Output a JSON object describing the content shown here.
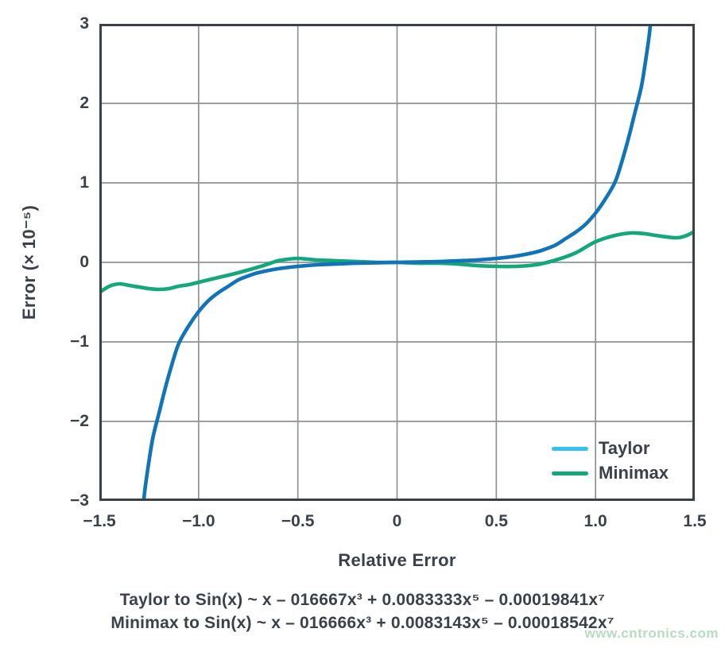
{
  "watermark": {
    "text": "www.cntronics.com",
    "color": "#b6dcc1"
  },
  "chart_data": {
    "type": "line",
    "title": "",
    "xlabel": "Relative Error",
    "ylabel": "Error (× 10⁻⁵)",
    "xlim": [
      -1.5,
      1.5
    ],
    "ylim": [
      -3,
      3
    ],
    "grid": true,
    "axis_color": "#3a414b",
    "grid_color": "#8f9296",
    "background": "#ffffff",
    "x_ticks": [
      {
        "value": -1.5,
        "label": "−1.5"
      },
      {
        "value": -1.0,
        "label": "−1.0"
      },
      {
        "value": -0.5,
        "label": "−0.5"
      },
      {
        "value": 0,
        "label": "0"
      },
      {
        "value": 0.5,
        "label": "0.5"
      },
      {
        "value": 1.0,
        "label": "1.0"
      },
      {
        "value": 1.5,
        "label": "1.5"
      }
    ],
    "y_ticks": [
      {
        "value": 3,
        "label": "3"
      },
      {
        "value": 2,
        "label": "2"
      },
      {
        "value": 1,
        "label": "1"
      },
      {
        "value": 0,
        "label": "0"
      },
      {
        "value": -1,
        "label": "−1"
      },
      {
        "value": -2,
        "label": "−2"
      },
      {
        "value": -3,
        "label": "−3"
      }
    ],
    "legend": {
      "position": "bottom-right",
      "items": [
        {
          "label": "Taylor",
          "swatch_color": "#33c2ea"
        },
        {
          "label": "Minimax",
          "swatch_color": "#12a87c"
        }
      ]
    },
    "series": [
      {
        "name": "Minimax",
        "color": "#12a87c",
        "points": [
          [
            -1.5,
            -0.38
          ],
          [
            -1.45,
            -0.3
          ],
          [
            -1.4,
            -0.27
          ],
          [
            -1.35,
            -0.29
          ],
          [
            -1.3,
            -0.31
          ],
          [
            -1.25,
            -0.33
          ],
          [
            -1.2,
            -0.34
          ],
          [
            -1.15,
            -0.33
          ],
          [
            -1.1,
            -0.3
          ],
          [
            -1.05,
            -0.28
          ],
          [
            -1.0,
            -0.25
          ],
          [
            -0.9,
            -0.19
          ],
          [
            -0.8,
            -0.13
          ],
          [
            -0.7,
            -0.06
          ],
          [
            -0.65,
            -0.02
          ],
          [
            -0.6,
            0.02
          ],
          [
            -0.55,
            0.04
          ],
          [
            -0.5,
            0.05
          ],
          [
            -0.45,
            0.04
          ],
          [
            -0.4,
            0.03
          ],
          [
            -0.3,
            0.02
          ],
          [
            -0.2,
            0.01
          ],
          [
            -0.1,
            0.0
          ],
          [
            0,
            0
          ],
          [
            0.1,
            -0.01
          ],
          [
            0.2,
            -0.01
          ],
          [
            0.3,
            -0.02
          ],
          [
            0.4,
            -0.04
          ],
          [
            0.5,
            -0.05
          ],
          [
            0.6,
            -0.05
          ],
          [
            0.7,
            -0.03
          ],
          [
            0.8,
            0.03
          ],
          [
            0.9,
            0.12
          ],
          [
            1.0,
            0.26
          ],
          [
            1.1,
            0.34
          ],
          [
            1.18,
            0.37
          ],
          [
            1.25,
            0.36
          ],
          [
            1.3,
            0.34
          ],
          [
            1.4,
            0.31
          ],
          [
            1.45,
            0.33
          ],
          [
            1.5,
            0.39
          ]
        ]
      },
      {
        "name": "Taylor",
        "color": "#1173b8",
        "points": [
          [
            -1.29,
            -3.3
          ],
          [
            -1.27,
            -2.85
          ],
          [
            -1.25,
            -2.5
          ],
          [
            -1.23,
            -2.2
          ],
          [
            -1.2,
            -1.9
          ],
          [
            -1.17,
            -1.6
          ],
          [
            -1.14,
            -1.33
          ],
          [
            -1.1,
            -1.02
          ],
          [
            -1.05,
            -0.8
          ],
          [
            -1.0,
            -0.62
          ],
          [
            -0.95,
            -0.48
          ],
          [
            -0.9,
            -0.38
          ],
          [
            -0.85,
            -0.3
          ],
          [
            -0.8,
            -0.22
          ],
          [
            -0.75,
            -0.17
          ],
          [
            -0.7,
            -0.13
          ],
          [
            -0.6,
            -0.08
          ],
          [
            -0.5,
            -0.05
          ],
          [
            -0.4,
            -0.03
          ],
          [
            -0.3,
            -0.02
          ],
          [
            -0.2,
            -0.01
          ],
          [
            0,
            0
          ],
          [
            0.2,
            0.01
          ],
          [
            0.3,
            0.02
          ],
          [
            0.4,
            0.03
          ],
          [
            0.5,
            0.05
          ],
          [
            0.6,
            0.08
          ],
          [
            0.7,
            0.13
          ],
          [
            0.75,
            0.17
          ],
          [
            0.8,
            0.22
          ],
          [
            0.85,
            0.3
          ],
          [
            0.9,
            0.38
          ],
          [
            0.95,
            0.48
          ],
          [
            1.0,
            0.62
          ],
          [
            1.05,
            0.8
          ],
          [
            1.1,
            1.02
          ],
          [
            1.14,
            1.33
          ],
          [
            1.17,
            1.6
          ],
          [
            1.2,
            1.9
          ],
          [
            1.23,
            2.2
          ],
          [
            1.25,
            2.5
          ],
          [
            1.27,
            2.85
          ],
          [
            1.29,
            3.3
          ]
        ]
      }
    ],
    "annotations": [
      "Taylor to Sin(x) ~ x – 016667x³ + 0.0083333x⁵ – 0.00019841x⁷",
      "Minimax to Sin(x) ~ x – 016666x³ + 0.0083143x⁵ – 0.00018542x⁷"
    ]
  }
}
